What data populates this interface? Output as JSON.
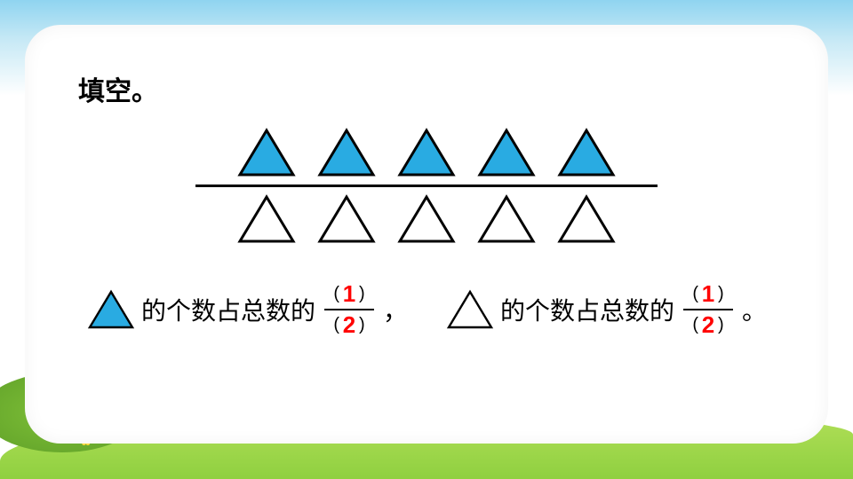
{
  "title": "填空。",
  "triangle": {
    "filled_color": "#29abe2",
    "outline_color": "#000000",
    "stroke_width": 3,
    "top_row_count": 5,
    "bottom_row_count": 5,
    "top_filled": true,
    "bottom_filled": false
  },
  "divider_color": "#000000",
  "sentence": {
    "part1": "的个数占总数的",
    "comma": "，",
    "part2": "的个数占总数的",
    "period": "。"
  },
  "fraction1": {
    "numerator_paren_left": "(",
    "numerator_paren_right": ")",
    "numerator_answer": "1",
    "denominator_paren_left": "(",
    "denominator_paren_right": ")",
    "denominator_answer": "2",
    "answer_color": "#ff0000"
  },
  "fraction2": {
    "numerator_paren_left": "(",
    "numerator_paren_right": ")",
    "numerator_answer": "1",
    "denominator_paren_left": "(",
    "denominator_paren_right": ")",
    "denominator_answer": "2",
    "answer_color": "#ff0000"
  },
  "background": {
    "sky_top": "#8fd4f0",
    "sky_bottom": "#ffffff",
    "grass": "#8fd040",
    "hill": "#5fa028"
  }
}
